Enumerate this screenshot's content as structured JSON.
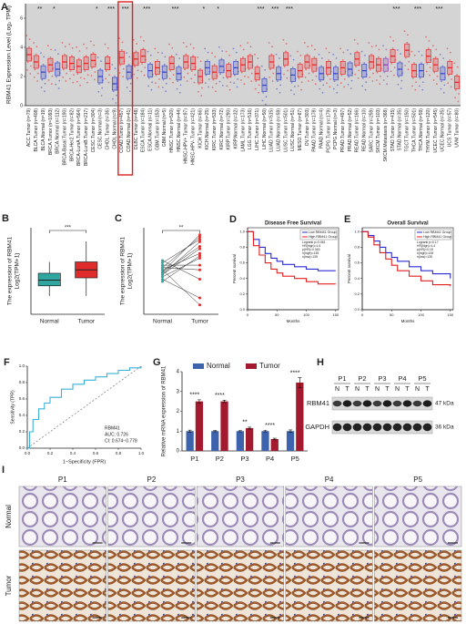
{
  "chart_data": [
    {
      "type": "box-strip",
      "panel": "A",
      "ylabel": "RBM41 Expression Level (Log₂ TPM)",
      "categories": [
        "ACC.Tumor (n=79)",
        "BLCA.Tumor (n=408)",
        "BLCA.Normal (n=19)",
        "BRCA.Tumor (n=1093)",
        "BRCA.Normal (n=112)",
        "BRCA-Basal.Tumor (n=190)",
        "BRCA-Her2.Tumor (n=82)",
        "BRCA-LumA.Tumor (n=564)",
        "BRCA-LumB.Tumor (n=217)",
        "CESC.Tumor (n=304)",
        "CESC.Normal (n=3)",
        "CHOL.Tumor (n=36)",
        "CHOL.Normal (n=9)",
        "COAD.Tumor (n=457)",
        "COAD.Normal (n=41)",
        "DLBC.Tumor (n=48)",
        "ESCA.Tumor (n=184)",
        "ESCA.Normal (n=11)",
        "GBM.Tumor (n=153)",
        "GBM.Normal (n=5)",
        "HNSC.Tumor (n=520)",
        "HNSC.Normal (n=44)",
        "HNSC-HPV+.Tumor (n=97)",
        "HNSC-HPV-.Tumor (n=421)",
        "KICH.Tumor (n=66)",
        "KICH.Normal (n=25)",
        "KIRC.Tumor (n=533)",
        "KIRC.Normal (n=72)",
        "KIRP.Tumor (n=290)",
        "KIRP.Normal (n=32)",
        "LAML.Tumor (n=173)",
        "LGG.Tumor (n=516)",
        "LIHC.Tumor (n=371)",
        "LIHC.Normal (n=50)",
        "LUAD.Tumor (n=515)",
        "LUAD.Normal (n=59)",
        "LUSC.Tumor (n=501)",
        "LUSC.Normal (n=51)",
        "MESO.Tumor (n=87)",
        "OV.Tumor (n=303)",
        "PAAD.Tumor (n=178)",
        "PAAD.Normal (n=4)",
        "PCPG.Tumor (n=179)",
        "PCPG.Normal (n=3)",
        "PRAD.Tumor (n=497)",
        "PRAD.Normal (n=52)",
        "READ.Tumor (n=166)",
        "READ.Normal (n=10)",
        "SARC.Tumor (n=259)",
        "SKCM.Tumor (n=103)",
        "SKCM.Metastasis (n=368)",
        "STAD.Tumor (n=415)",
        "STAD.Normal (n=35)",
        "TGCT.Tumor (n=150)",
        "THCA.Tumor (n=501)",
        "THCA.Normal (n=59)",
        "THYM.Tumor (n=120)",
        "UCEC.Tumor (n=545)",
        "UCEC.Normal (n=35)",
        "UCS.Tumor (n=57)",
        "UVM.Tumor (n=80)"
      ],
      "values": [
        3.5,
        3.0,
        2.3,
        2.8,
        2.5,
        3.0,
        2.9,
        2.7,
        2.9,
        3.1,
        2.0,
        2.9,
        1.5,
        3.3,
        2.3,
        3.2,
        3.4,
        2.4,
        2.6,
        2.3,
        2.9,
        2.2,
        3.0,
        2.9,
        2.0,
        2.6,
        2.3,
        2.7,
        2.4,
        2.6,
        2.8,
        3.0,
        2.2,
        1.4,
        3.0,
        2.2,
        3.2,
        2.1,
        2.4,
        3.0,
        2.8,
        2.2,
        2.6,
        2.2,
        2.6,
        2.5,
        3.2,
        2.4,
        3.0,
        2.8,
        2.8,
        3.4,
        2.5,
        3.8,
        2.4,
        2.4,
        3.4,
        2.8,
        2.2,
        2.6,
        1.6
      ],
      "significance": [
        null,
        "**",
        null,
        "*",
        null,
        null,
        null,
        null,
        null,
        "*",
        null,
        "***",
        null,
        "***",
        null,
        null,
        "***",
        null,
        null,
        null,
        "***",
        null,
        null,
        null,
        "*",
        null,
        "*",
        null,
        null,
        null,
        null,
        null,
        "***",
        null,
        "***",
        null,
        "***",
        null,
        null,
        null,
        null,
        null,
        null,
        null,
        null,
        null,
        null,
        null,
        null,
        null,
        null,
        "***",
        null,
        null,
        "***",
        null,
        null,
        "***",
        null,
        null,
        null
      ],
      "colors": {
        "Tumor": "#e8262a",
        "Normal": "#3a47c9",
        "Metastasis": "#8a3fb0"
      },
      "ylim": [
        0,
        7
      ],
      "yticks": [
        0,
        2,
        4,
        6
      ]
    },
    {
      "type": "box",
      "panel": "B",
      "ylabel": [
        "The expression of RBM41",
        "Log2(TPM+1)"
      ],
      "categories": [
        "Normal",
        "Tumor"
      ],
      "significance": "***",
      "boxes": [
        {
          "min": 1.6,
          "q1": 2.05,
          "median": 2.3,
          "q3": 2.6,
          "max": 3.1,
          "color": "#2fa6a0"
        },
        {
          "min": 1.6,
          "q1": 2.4,
          "median": 2.75,
          "q3": 3.1,
          "max": 4.0,
          "color": "#e02b2b"
        }
      ],
      "ylim": [
        0.8,
        4.6
      ]
    },
    {
      "type": "paired",
      "panel": "C",
      "ylabel": [
        "The expression of RBM41",
        "Log2(TPM+1)"
      ],
      "categories": [
        "Normal",
        "Tumor"
      ],
      "significance": "**",
      "normal": [
        2.3,
        2.1,
        2.5,
        2.0,
        2.6,
        2.4,
        2.2,
        2.8,
        1.9,
        2.3,
        2.5,
        2.2,
        2.4,
        2.7
      ],
      "tumor": [
        3.4,
        2.9,
        3.8,
        1.2,
        2.6,
        3.1,
        3.6,
        2.0,
        3.0,
        3.9,
        2.4,
        3.3,
        0.9,
        3.7
      ],
      "colors": {
        "normal": "#2fa6a0",
        "tumor": "#e02b2b"
      },
      "ylim": [
        0.5,
        4.2
      ]
    },
    {
      "type": "survival",
      "panel": "D",
      "title": "Disease Free Survival",
      "xlabel": "Months",
      "ylabel": "Percent survival",
      "series": [
        {
          "name": "Low RBM41 Group",
          "color": "#2b2bd6",
          "x": [
            0,
            10,
            20,
            30,
            40,
            50,
            60,
            80,
            100,
            120,
            150
          ],
          "values": [
            1,
            0.9,
            0.8,
            0.72,
            0.66,
            0.62,
            0.58,
            0.55,
            0.52,
            0.5,
            0.5
          ]
        },
        {
          "name": "High RBM41 Group",
          "color": "#e02020",
          "x": [
            0,
            10,
            20,
            30,
            40,
            50,
            60,
            80,
            100,
            120,
            150
          ],
          "values": [
            1,
            0.82,
            0.7,
            0.6,
            0.52,
            0.47,
            0.43,
            0.4,
            0.36,
            0.33,
            0.33
          ]
        }
      ],
      "annotations": [
        "Logrank p=0.061",
        "HR(high)=1.6",
        "p(HR)=0.063",
        "n(high)=135",
        "n(low)=135"
      ],
      "xlim": [
        0,
        155
      ],
      "xticks": [
        0,
        50,
        100,
        150
      ],
      "ylim": [
        0,
        1.05
      ],
      "yticks": [
        {
          "value": 0,
          "label": "0.0"
        },
        {
          "value": 0.2,
          "label": "0.2"
        },
        {
          "value": 0.4,
          "label": "0.4"
        },
        {
          "value": 0.6,
          "label": "0.6"
        },
        {
          "value": 0.8,
          "label": "0.8"
        },
        {
          "value": 1,
          "label": "1.0"
        }
      ]
    },
    {
      "type": "survival",
      "panel": "E",
      "title": "Overall Survival",
      "xlabel": "Months",
      "ylabel": "Percent survival",
      "series": [
        {
          "name": "Low RBM41 Group",
          "color": "#2b2bd6",
          "x": [
            0,
            10,
            20,
            30,
            40,
            50,
            60,
            80,
            100,
            120,
            150
          ],
          "values": [
            1,
            0.95,
            0.88,
            0.8,
            0.73,
            0.67,
            0.62,
            0.55,
            0.5,
            0.46,
            0.4
          ]
        },
        {
          "name": "High RBM41 Group",
          "color": "#e02020",
          "x": [
            0,
            10,
            20,
            30,
            40,
            50,
            60,
            80,
            100,
            120,
            150
          ],
          "values": [
            1,
            0.93,
            0.83,
            0.73,
            0.65,
            0.57,
            0.5,
            0.43,
            0.37,
            0.32,
            0.3
          ]
        }
      ],
      "annotations": [
        "Logrank p=0.17",
        "HR(high)=1.4",
        "p(HR)=0.18",
        "n(high)=135",
        "n(low)=135"
      ],
      "xlim": [
        0,
        155
      ],
      "xticks": [
        0,
        50,
        100,
        150
      ],
      "ylim": [
        0,
        1.05
      ],
      "yticks": [
        {
          "value": 0,
          "label": "0.0"
        },
        {
          "value": 0.2,
          "label": "0.2"
        },
        {
          "value": 0.4,
          "label": "0.4"
        },
        {
          "value": 0.6,
          "label": "0.6"
        },
        {
          "value": 0.8,
          "label": "0.8"
        },
        {
          "value": 1,
          "label": "1.0"
        }
      ]
    },
    {
      "type": "roc",
      "panel": "F",
      "xlabel": "1−Specificity (FPR)",
      "ylabel": "Sensitivity (TPR)",
      "annotations": [
        "RBM41",
        "AUC: 0.726",
        "CI: 0.674−0.778"
      ],
      "color": "#3bb0d8",
      "x": [
        0,
        0.02,
        0.05,
        0.1,
        0.15,
        0.2,
        0.3,
        0.4,
        0.5,
        0.6,
        0.7,
        0.8,
        0.9,
        1
      ],
      "values": [
        0,
        0.2,
        0.35,
        0.48,
        0.55,
        0.62,
        0.72,
        0.78,
        0.83,
        0.87,
        0.91,
        0.95,
        0.98,
        1
      ],
      "xlim": [
        0,
        1
      ],
      "ylim": [
        0,
        1
      ],
      "xticks": [
        {
          "value": 0,
          "label": "0.0"
        },
        {
          "value": 0.2,
          "label": "0.2"
        },
        {
          "value": 0.4,
          "label": "0.4"
        },
        {
          "value": 0.6,
          "label": "0.6"
        },
        {
          "value": 0.8,
          "label": "0.8"
        },
        {
          "value": 1,
          "label": "1.0"
        }
      ],
      "yticks": [
        {
          "value": 0,
          "label": "0.0"
        },
        {
          "value": 0.2,
          "label": "0.2"
        },
        {
          "value": 0.4,
          "label": "0.4"
        },
        {
          "value": 0.6,
          "label": "0.6"
        },
        {
          "value": 0.8,
          "label": "0.8"
        },
        {
          "value": 1,
          "label": "1.0"
        }
      ]
    },
    {
      "type": "grouped-bar",
      "panel": "G",
      "ylabel": "Relative mRNA expression of RBM41",
      "categories": [
        "P1",
        "P2",
        "P3",
        "P4",
        "P5"
      ],
      "series": [
        {
          "name": "Normal",
          "color": "#3d63ad",
          "values": [
            1.0,
            1.0,
            1.0,
            1.0,
            1.0
          ],
          "errors": [
            0.05,
            0.03,
            0.04,
            0.04,
            0.06
          ]
        },
        {
          "name": "Tumor",
          "color": "#a3192d",
          "values": [
            2.5,
            2.5,
            1.15,
            0.6,
            3.45
          ],
          "errors": [
            0.08,
            0.06,
            0.05,
            0.04,
            0.25
          ]
        }
      ],
      "significance": [
        "****",
        "****",
        "**",
        "****",
        "****"
      ],
      "ylim": [
        0,
        4
      ],
      "yticks": [
        0,
        1,
        2,
        3,
        4
      ]
    }
  ],
  "blot": {
    "panel": "H",
    "patients": [
      "P1",
      "P2",
      "P3",
      "P4",
      "P5"
    ],
    "lanes": [
      "N",
      "T"
    ],
    "rows": [
      "RBM41",
      "GAPDH"
    ],
    "sizes": [
      "47 kDa",
      "36 kDa"
    ]
  },
  "ihc": {
    "panel": "I",
    "columns": [
      "P1",
      "P2",
      "P3",
      "P4",
      "P5"
    ],
    "rows": [
      "Normal",
      "Tumor"
    ]
  }
}
